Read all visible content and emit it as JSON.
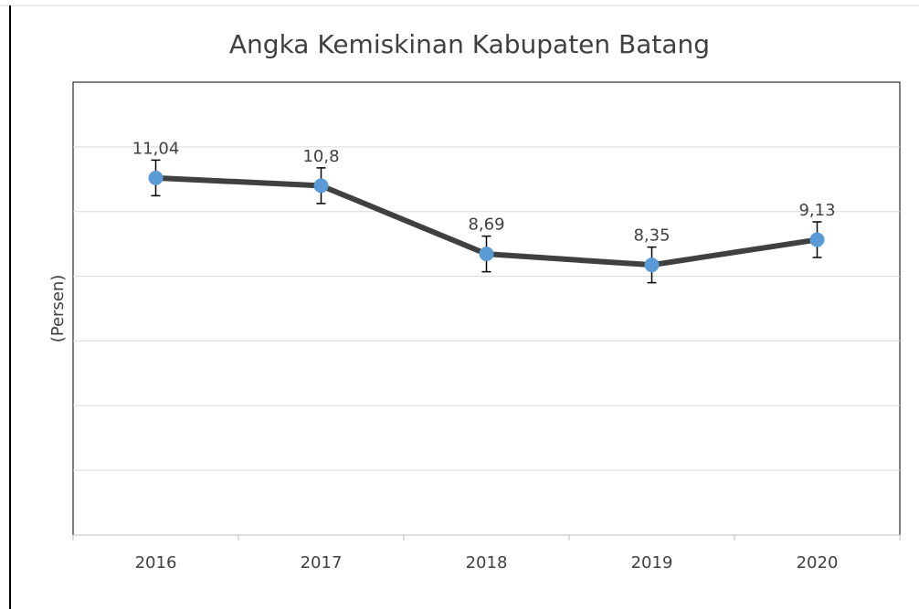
{
  "chart_data": {
    "type": "line",
    "title": "Angka Kemiskinan Kabupaten Batang",
    "y_label": "(Persen)",
    "categories": [
      "2016",
      "2017",
      "2018",
      "2019",
      "2020"
    ],
    "series": [
      {
        "name": "Angka Kemiskinan",
        "color": "#404040",
        "marker_color": "#5b9bd5",
        "values": [
          11.04,
          10.8,
          8.69,
          8.35,
          9.13
        ],
        "value_labels": [
          "11,04",
          "10,8",
          "8,69",
          "8,35",
          "9,13"
        ],
        "errors": [
          0.55,
          0.55,
          0.55,
          0.55,
          0.55
        ]
      }
    ],
    "ylim": [
      0,
      14
    ],
    "yticks": [
      0,
      2,
      4,
      6,
      8,
      10,
      12,
      14
    ],
    "grid": true
  }
}
